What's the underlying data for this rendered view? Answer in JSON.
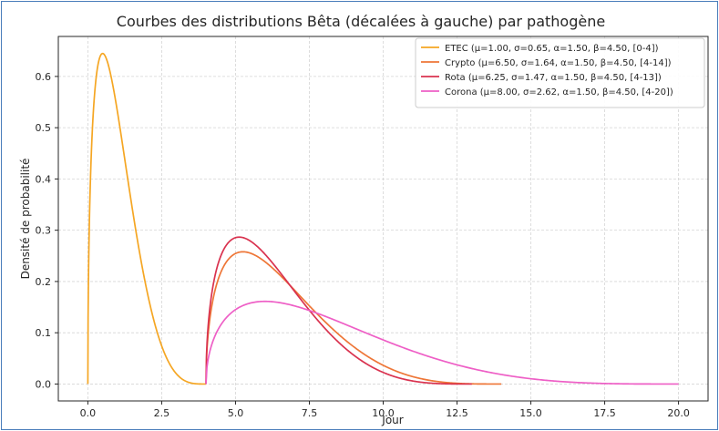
{
  "chart_data": {
    "type": "line",
    "title": "Courbes des distributions Bêta (décalées à gauche) par pathogène",
    "xlabel": "Jour",
    "ylabel": "Densité de probabilité",
    "xlim": [
      -1.0,
      21.0
    ],
    "ylim": [
      -0.033,
      0.678
    ],
    "xticks": [
      0.0,
      2.5,
      5.0,
      7.5,
      10.0,
      12.5,
      15.0,
      17.5,
      20.0
    ],
    "xtick_labels": [
      "0.0",
      "2.5",
      "5.0",
      "7.5",
      "10.0",
      "12.5",
      "15.0",
      "17.5",
      "20.0"
    ],
    "yticks": [
      0.0,
      0.1,
      0.2,
      0.3,
      0.4,
      0.5,
      0.6
    ],
    "ytick_labels": [
      "0.0",
      "0.1",
      "0.2",
      "0.3",
      "0.4",
      "0.5",
      "0.6"
    ],
    "grid": true,
    "legend_position": "top-right",
    "series": [
      {
        "name": "ETEC (μ=1.00, σ=0.65, α=1.50, β=4.50, [0-4])",
        "color": "#f5a623",
        "distribution": "beta",
        "alpha": 1.5,
        "beta": 4.5,
        "start": 0,
        "end": 4
      },
      {
        "name": "Crypto (μ=6.50, σ=1.64, α=1.50, β=4.50, [4-14])",
        "color": "#ee7637",
        "distribution": "beta",
        "alpha": 1.5,
        "beta": 4.5,
        "start": 4,
        "end": 14
      },
      {
        "name": "Rota (μ=6.25, σ=1.47, α=1.50, β=4.50, [4-13])",
        "color": "#d9324f",
        "distribution": "beta",
        "alpha": 1.5,
        "beta": 4.5,
        "start": 4,
        "end": 13
      },
      {
        "name": "Corona (μ=8.00, σ=2.62, α=1.50, β=4.50, [4-20])",
        "color": "#ee5fc6",
        "distribution": "beta",
        "alpha": 1.5,
        "beta": 4.5,
        "start": 4,
        "end": 20
      }
    ]
  }
}
